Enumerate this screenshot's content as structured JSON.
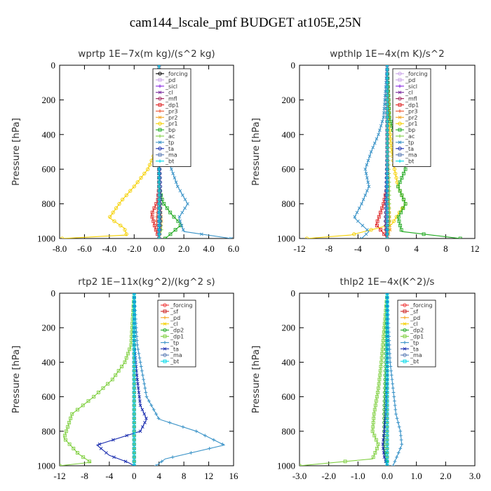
{
  "title": "cam144_lscale_pmf  BUDGET at105E,25N",
  "chart_data": [
    {
      "type": "line",
      "title": "wprtp   1E−7x(m kg)/(s^2 kg)",
      "ylabel": "Pressure [hPa]",
      "xlim": [
        -8,
        6
      ],
      "ylim": [
        1000,
        0
      ],
      "xticks": [
        -8,
        -6,
        -4,
        -2,
        0,
        2,
        4,
        6
      ],
      "xtick_labels": [
        "-8.0",
        "-6.0",
        "-4.0",
        "-2.0",
        "0.0",
        "2.0",
        "4.0",
        "6.0"
      ],
      "yticks": [
        0,
        200,
        400,
        600,
        800,
        1000
      ],
      "ytick_labels": [
        "0",
        "200",
        "400",
        "600",
        "800",
        "1000"
      ],
      "legend_position": "top-right",
      "series": [
        {
          "name": "_forcing",
          "color": "#000000",
          "x": [
            0,
            0,
            0,
            0,
            0
          ],
          "y": [
            0,
            250,
            500,
            750,
            1000
          ]
        },
        {
          "name": "_pd",
          "color": "#c8a2e8",
          "x": [
            0,
            0,
            0,
            0,
            0
          ],
          "y": [
            0,
            250,
            500,
            750,
            1000
          ]
        },
        {
          "name": "_sicl",
          "color": "#8a2be2",
          "x": [
            0,
            0,
            0,
            0,
            0
          ],
          "y": [
            0,
            250,
            500,
            750,
            1000
          ]
        },
        {
          "name": "_cl",
          "color": "#7a2a9e",
          "x": [
            0,
            0,
            0,
            0,
            0
          ],
          "y": [
            0,
            250,
            500,
            750,
            1000
          ]
        },
        {
          "name": "_mfl",
          "color": "#a0205a",
          "x": [
            0,
            0,
            0,
            0,
            0
          ],
          "y": [
            0,
            250,
            500,
            750,
            1000
          ]
        },
        {
          "name": "_dp1",
          "color": "#dd2222",
          "x": [
            0,
            0,
            -0.1,
            -0.6,
            -0.3,
            0
          ],
          "y": [
            0,
            700,
            780,
            860,
            940,
            1000
          ]
        },
        {
          "name": "_pr3",
          "color": "#ee5533",
          "x": [
            0,
            0,
            -0.1,
            -0.2,
            0
          ],
          "y": [
            0,
            700,
            800,
            900,
            1000
          ]
        },
        {
          "name": "_pr2",
          "color": "#f5a623",
          "x": [
            0,
            0,
            0.1,
            0.2,
            0
          ],
          "y": [
            0,
            600,
            800,
            900,
            1000
          ]
        },
        {
          "name": "_pr1",
          "color": "#f5d000",
          "x": [
            0,
            0,
            -0.3,
            -0.9,
            -2.0,
            -3.0,
            -4.0,
            -2.8,
            -2.6,
            -7.8
          ],
          "y": [
            0,
            400,
            500,
            600,
            700,
            780,
            880,
            940,
            980,
            1000
          ]
        },
        {
          "name": "_bp",
          "color": "#22aa22",
          "x": [
            0,
            0,
            0.3,
            1.0,
            1.8,
            1.0,
            0.5
          ],
          "y": [
            0,
            700,
            790,
            860,
            920,
            970,
            1000
          ]
        },
        {
          "name": "_ac",
          "color": "#7fcf3f",
          "x": [
            0,
            0,
            0.1,
            0.2,
            0
          ],
          "y": [
            0,
            700,
            850,
            950,
            1000
          ]
        },
        {
          "name": "_tp",
          "color": "#3c94c8",
          "x": [
            0,
            0.1,
            0.3,
            0.6,
            1.0,
            1.5,
            2.3,
            1.6,
            2.0,
            5.8
          ],
          "y": [
            0,
            300,
            400,
            500,
            600,
            700,
            800,
            880,
            960,
            1000
          ]
        },
        {
          "name": "_ta",
          "color": "#1c2fb0",
          "x": [
            0,
            0,
            0.1,
            0.1,
            0
          ],
          "y": [
            0,
            500,
            700,
            900,
            1000
          ]
        },
        {
          "name": "_ma",
          "color": "#5a7bb5",
          "x": [
            0,
            0,
            0,
            0,
            0
          ],
          "y": [
            0,
            250,
            500,
            750,
            1000
          ]
        },
        {
          "name": "_bt",
          "color": "#00d8e8",
          "x": [
            0,
            0,
            0,
            0,
            0
          ],
          "y": [
            0,
            250,
            500,
            750,
            1000
          ]
        }
      ]
    },
    {
      "type": "line",
      "title": "wpthlp   1E−4x(m K)/s^2",
      "ylabel": "Pressure [hPa]",
      "xlim": [
        -12,
        12
      ],
      "ylim": [
        1000,
        0
      ],
      "xticks": [
        -12,
        -8,
        -4,
        0,
        4,
        8,
        12
      ],
      "xtick_labels": [
        "-12",
        "-8",
        "-4",
        "0",
        "4",
        "8",
        "12"
      ],
      "yticks": [
        0,
        200,
        400,
        600,
        800,
        1000
      ],
      "ytick_labels": [
        "0",
        "200",
        "400",
        "600",
        "800",
        "1000"
      ],
      "legend_position": "top-right",
      "series": [
        {
          "name": "_forcing",
          "color": "#c8a2e8",
          "x": [
            0,
            0,
            0,
            0,
            0
          ],
          "y": [
            0,
            250,
            500,
            750,
            1000
          ]
        },
        {
          "name": "_pd",
          "color": "#c8a2e8",
          "x": [
            0,
            0,
            0,
            0,
            0
          ],
          "y": [
            0,
            250,
            500,
            750,
            1000
          ]
        },
        {
          "name": "_sicl",
          "color": "#8a2be2",
          "x": [
            0,
            0,
            0,
            0,
            0
          ],
          "y": [
            0,
            250,
            500,
            750,
            1000
          ]
        },
        {
          "name": "_cl",
          "color": "#7a2a9e",
          "x": [
            0,
            0,
            0,
            0,
            0
          ],
          "y": [
            0,
            250,
            500,
            750,
            1000
          ]
        },
        {
          "name": "_mfl",
          "color": "#a0205a",
          "x": [
            0,
            0,
            0,
            0,
            0
          ],
          "y": [
            0,
            250,
            500,
            750,
            1000
          ]
        },
        {
          "name": "_dp1",
          "color": "#dd2222",
          "x": [
            0,
            0,
            -0.5,
            -1.5,
            -0.5,
            0
          ],
          "y": [
            0,
            700,
            800,
            920,
            970,
            1000
          ]
        },
        {
          "name": "_pr3",
          "color": "#ee5533",
          "x": [
            0,
            0,
            -0.2,
            -0.3,
            0
          ],
          "y": [
            0,
            700,
            850,
            950,
            1000
          ]
        },
        {
          "name": "_pr2",
          "color": "#f5a623",
          "x": [
            0,
            0,
            0.3,
            0.4,
            0
          ],
          "y": [
            0,
            700,
            850,
            950,
            1000
          ]
        },
        {
          "name": "_pr1",
          "color": "#f5d000",
          "x": [
            0,
            0.2,
            0.5,
            1.0,
            1.5,
            2.5,
            1.5,
            0.6,
            -5.0,
            -11.0
          ],
          "y": [
            0,
            300,
            450,
            600,
            700,
            800,
            860,
            920,
            980,
            1000
          ]
        },
        {
          "name": "_bp",
          "color": "#22aa22",
          "x": [
            0,
            0.3,
            1.0,
            2.0,
            2.5,
            1.5,
            2.5,
            1.5,
            2.0,
            10.0
          ],
          "y": [
            0,
            300,
            400,
            500,
            600,
            700,
            800,
            880,
            960,
            1000
          ]
        },
        {
          "name": "_ac",
          "color": "#7fcf3f",
          "x": [
            0,
            0.1,
            0.3,
            0.3,
            0
          ],
          "y": [
            0,
            400,
            700,
            900,
            1000
          ]
        },
        {
          "name": "_tp",
          "color": "#3c94c8",
          "x": [
            0,
            -0.5,
            -1.2,
            -2.2,
            -3.0,
            -2.5,
            -3.5,
            -4.5,
            -2.5,
            -3.5
          ],
          "y": [
            0,
            300,
            400,
            500,
            600,
            700,
            800,
            880,
            960,
            1000
          ]
        },
        {
          "name": "_ta",
          "color": "#1c2fb0",
          "x": [
            0,
            0,
            -0.1,
            -0.2,
            0
          ],
          "y": [
            0,
            500,
            700,
            900,
            1000
          ]
        },
        {
          "name": "_ma",
          "color": "#5a7bb5",
          "x": [
            0,
            0,
            0,
            0,
            0
          ],
          "y": [
            0,
            250,
            500,
            750,
            1000
          ]
        },
        {
          "name": "_bt",
          "color": "#00d8e8",
          "x": [
            0,
            0,
            0,
            0,
            0
          ],
          "y": [
            0,
            250,
            500,
            750,
            1000
          ]
        }
      ]
    },
    {
      "type": "line",
      "title": "rtp2   1E−11x(kg^2)/(kg^2 s)",
      "ylabel": "Pressure [hPa]",
      "xlim": [
        -12,
        16
      ],
      "ylim": [
        1000,
        0
      ],
      "xticks": [
        -12,
        -8,
        -4,
        0,
        4,
        8,
        12,
        16
      ],
      "xtick_labels": [
        "-12",
        "-8",
        "-4",
        "0",
        "4",
        "8",
        "12",
        "16"
      ],
      "yticks": [
        0,
        200,
        400,
        600,
        800,
        1000
      ],
      "ytick_labels": [
        "0",
        "200",
        "400",
        "600",
        "800",
        "1000"
      ],
      "legend_position": "top-right",
      "series": [
        {
          "name": "_forcing",
          "color": "#ee3333",
          "x": [
            0,
            0,
            0,
            0,
            0
          ],
          "y": [
            0,
            250,
            500,
            750,
            1000
          ]
        },
        {
          "name": "_sf",
          "color": "#cc2222",
          "x": [
            0,
            0,
            0,
            0,
            0
          ],
          "y": [
            0,
            250,
            500,
            750,
            1000
          ]
        },
        {
          "name": "_pd",
          "color": "#f5a623",
          "x": [
            0,
            0,
            0,
            0,
            0
          ],
          "y": [
            0,
            250,
            500,
            750,
            1000
          ]
        },
        {
          "name": "_cl",
          "color": "#f5d000",
          "x": [
            0,
            0,
            0,
            0,
            0
          ],
          "y": [
            0,
            250,
            500,
            750,
            1000
          ]
        },
        {
          "name": "_dp2",
          "color": "#22aa22",
          "x": [
            0,
            0,
            0,
            0,
            0
          ],
          "y": [
            0,
            250,
            500,
            750,
            1000
          ]
        },
        {
          "name": "_dp1",
          "color": "#7fcf3f",
          "x": [
            0,
            -0.5,
            -1.5,
            -3.5,
            -6.5,
            -10.0,
            -11.3,
            -9.0,
            -7.0,
            -12.0
          ],
          "y": [
            0,
            300,
            400,
            500,
            600,
            700,
            840,
            930,
            980,
            1000
          ]
        },
        {
          "name": "_tp",
          "color": "#3c94c8",
          "x": [
            0,
            0.5,
            1.0,
            1.5,
            2.0,
            4.0,
            10.0,
            14.5,
            5.0,
            3.5
          ],
          "y": [
            0,
            300,
            400,
            500,
            600,
            730,
            800,
            880,
            960,
            1000
          ]
        },
        {
          "name": "_ta",
          "color": "#1c2fb0",
          "x": [
            0,
            0,
            0.5,
            1.0,
            2.0,
            1.0,
            -6.0,
            -4.0,
            -1.0,
            0
          ],
          "y": [
            0,
            300,
            500,
            650,
            730,
            800,
            880,
            940,
            980,
            1000
          ]
        },
        {
          "name": "_ma",
          "color": "#5a7bb5",
          "x": [
            0,
            0,
            0,
            0,
            0
          ],
          "y": [
            0,
            250,
            500,
            750,
            1000
          ]
        },
        {
          "name": "_bt",
          "color": "#00d8e8",
          "x": [
            0,
            0,
            0,
            0,
            0
          ],
          "y": [
            0,
            250,
            500,
            750,
            1000
          ]
        }
      ]
    },
    {
      "type": "line",
      "title": "thlp2   1E−4x(K^2)/s",
      "ylabel": "Pressure [hPa]",
      "xlim": [
        -3,
        3
      ],
      "ylim": [
        1000,
        0
      ],
      "xticks": [
        -3,
        -2,
        -1,
        0,
        1,
        2,
        3
      ],
      "xtick_labels": [
        "-3.0",
        "-2.0",
        "-1.0",
        "0.0",
        "1.0",
        "2.0",
        "3.0"
      ],
      "yticks": [
        0,
        200,
        400,
        600,
        800,
        1000
      ],
      "ytick_labels": [
        "0",
        "200",
        "400",
        "600",
        "800",
        "1000"
      ],
      "legend_position": "top-right",
      "series": [
        {
          "name": "_forcing",
          "color": "#ee3333",
          "x": [
            0,
            0,
            0,
            0,
            0
          ],
          "y": [
            0,
            250,
            500,
            750,
            1000
          ]
        },
        {
          "name": "_sf",
          "color": "#cc2222",
          "x": [
            0,
            0,
            0,
            0,
            0
          ],
          "y": [
            0,
            250,
            500,
            750,
            1000
          ]
        },
        {
          "name": "_pd",
          "color": "#f5a623",
          "x": [
            0,
            0,
            0,
            0,
            0
          ],
          "y": [
            0,
            250,
            500,
            750,
            1000
          ]
        },
        {
          "name": "_cl",
          "color": "#f5d000",
          "x": [
            0,
            0,
            0,
            0,
            0
          ],
          "y": [
            0,
            250,
            500,
            750,
            1000
          ]
        },
        {
          "name": "_dp2",
          "color": "#22aa22",
          "x": [
            0,
            -0.05,
            -0.1,
            -0.1,
            0
          ],
          "y": [
            0,
            400,
            700,
            900,
            1000
          ]
        },
        {
          "name": "_dp1",
          "color": "#7fcf3f",
          "x": [
            0,
            -0.1,
            -0.2,
            -0.3,
            -0.45,
            -0.5,
            -0.3,
            -0.5,
            -3.0
          ],
          "y": [
            0,
            200,
            400,
            550,
            700,
            800,
            880,
            960,
            1000
          ]
        },
        {
          "name": "_tp",
          "color": "#3c94c8",
          "x": [
            0,
            0.05,
            0.1,
            0.2,
            0.3,
            0.45,
            0.5,
            0.3,
            0.2
          ],
          "y": [
            0,
            200,
            400,
            550,
            700,
            800,
            880,
            960,
            1000
          ]
        },
        {
          "name": "_ta",
          "color": "#1c2fb0",
          "x": [
            0,
            0,
            -0.05,
            -0.1,
            -0.15,
            -0.1,
            0
          ],
          "y": [
            0,
            500,
            700,
            800,
            880,
            950,
            1000
          ]
        },
        {
          "name": "_ma",
          "color": "#5a7bb5",
          "x": [
            0,
            0,
            0,
            0,
            0
          ],
          "y": [
            0,
            250,
            500,
            750,
            1000
          ]
        },
        {
          "name": "_bt",
          "color": "#00d8e8",
          "x": [
            0,
            0,
            0,
            0,
            0
          ],
          "y": [
            0,
            250,
            500,
            750,
            1000
          ]
        }
      ]
    }
  ]
}
